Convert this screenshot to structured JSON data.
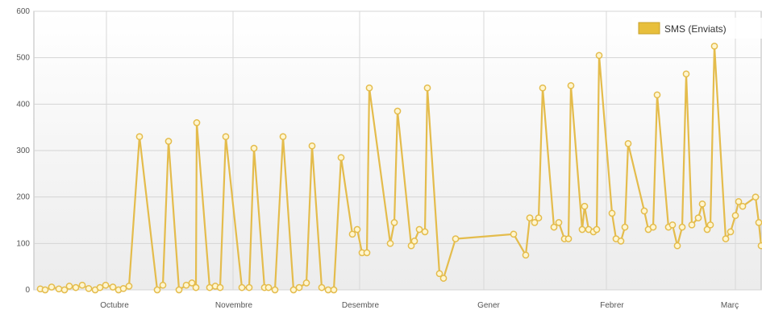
{
  "chart_data": {
    "type": "line",
    "title": "",
    "xlabel": "",
    "ylabel": "",
    "ylim": [
      0,
      600
    ],
    "yticks": [
      0,
      100,
      200,
      300,
      400,
      500,
      600
    ],
    "grid": true,
    "legend_position": "top-right",
    "x_tick_labels": [
      "Octubre",
      "Novembre",
      "Desembre",
      "Gener",
      "Febrer",
      "Març"
    ],
    "colors": {
      "series": "#E4BC4C",
      "marker_fill": "#FFF6D0",
      "legend_swatch": "#E8BF3C"
    },
    "series": [
      {
        "name": "SMS (Enviats)",
        "values": [
          2,
          0,
          6,
          2,
          0,
          8,
          5,
          10,
          3,
          0,
          5,
          10,
          6,
          0,
          3,
          8,
          330,
          0,
          10,
          320,
          0,
          10,
          15,
          5,
          360,
          5,
          8,
          5,
          330,
          5,
          5,
          305,
          5,
          5,
          0,
          330,
          0,
          5,
          15,
          310,
          5,
          0,
          0,
          285,
          120,
          130,
          80,
          80,
          435,
          100,
          145,
          385,
          95,
          105,
          130,
          125,
          435,
          35,
          25,
          110,
          120,
          75,
          155,
          145,
          155,
          435,
          135,
          145,
          110,
          110,
          440,
          130,
          180,
          130,
          125,
          130,
          505,
          165,
          110,
          105,
          135,
          315,
          170,
          130,
          135,
          420,
          135,
          140,
          95,
          135,
          465,
          140,
          155,
          185,
          130,
          140,
          525,
          110,
          125,
          160,
          190,
          180,
          200,
          145,
          95
        ]
      }
    ]
  }
}
